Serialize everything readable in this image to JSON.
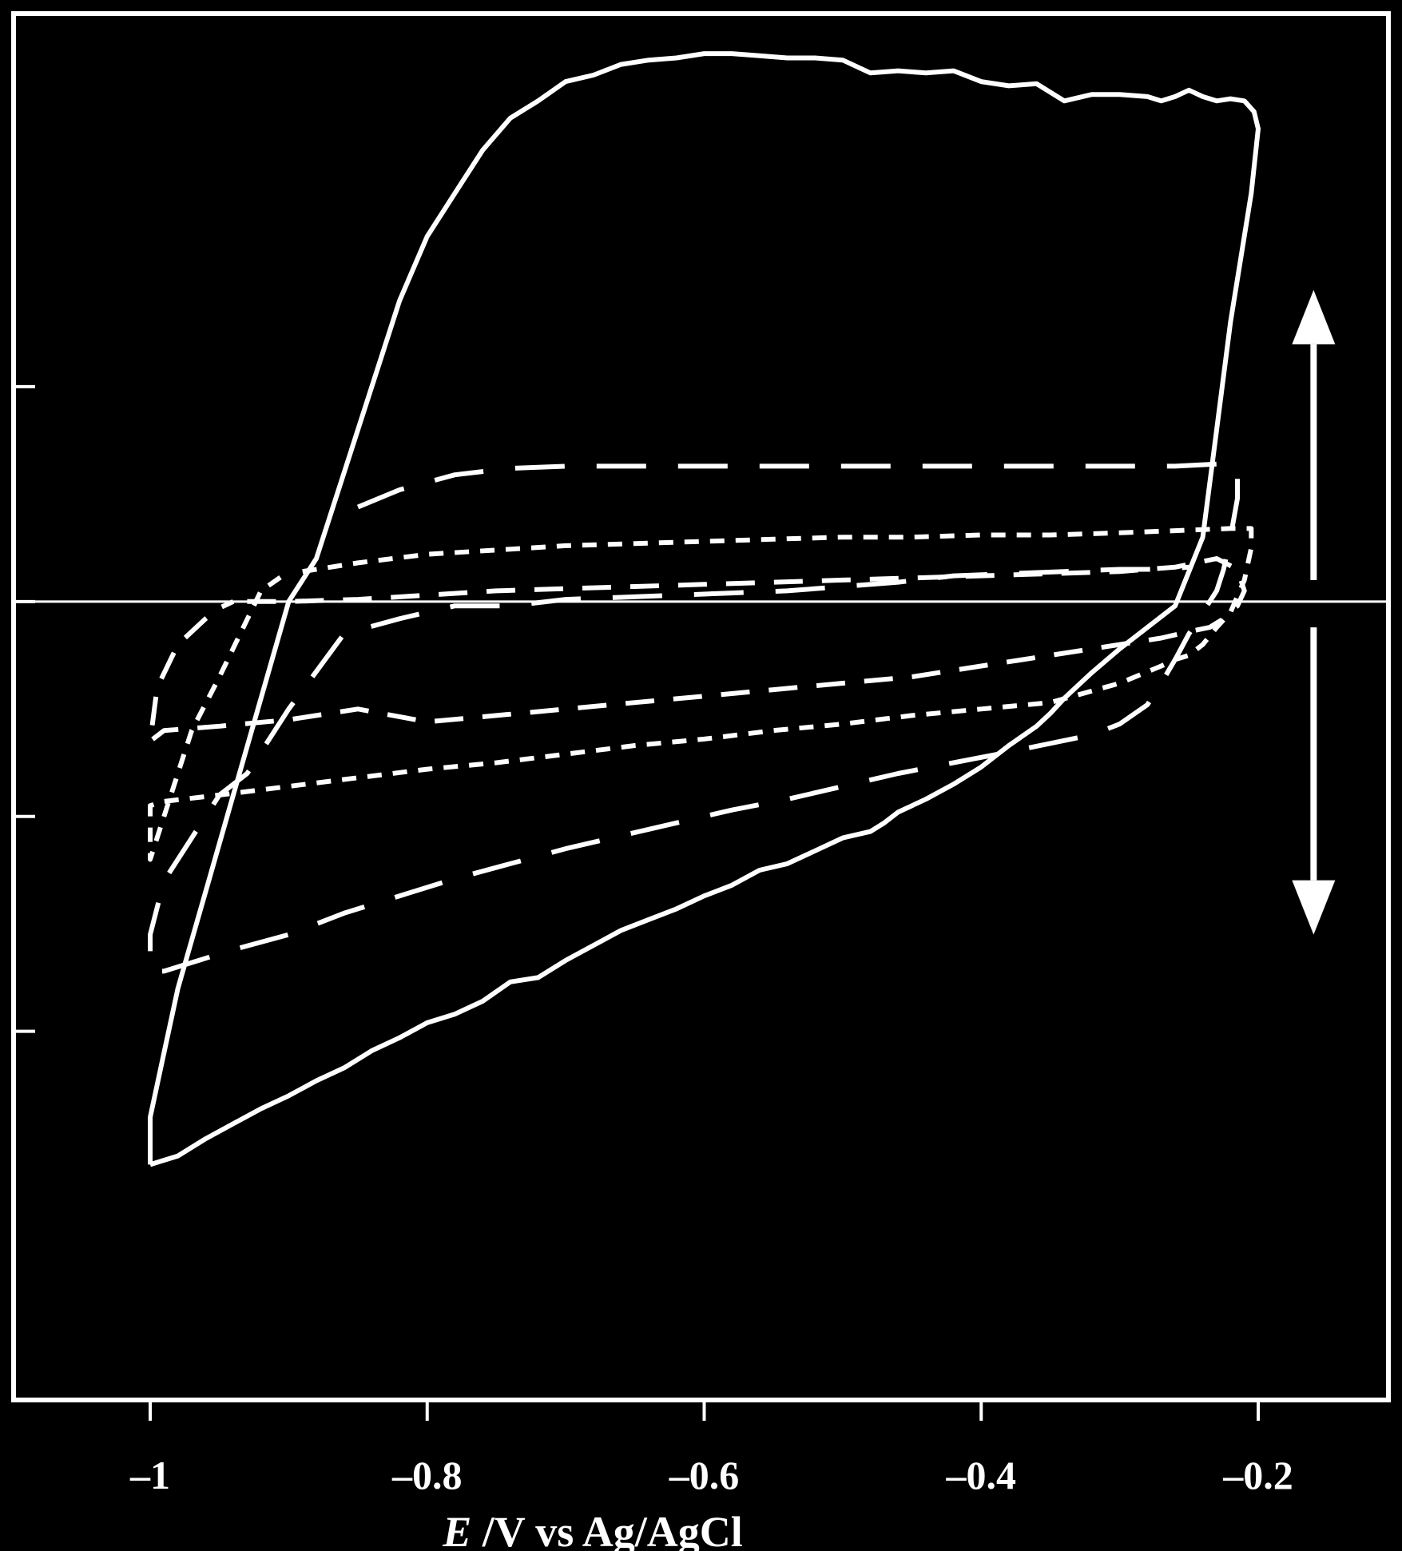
{
  "chart_data": {
    "type": "line",
    "title": "",
    "xlabel": "E /V vs Ag/AgCl",
    "xlabel_italic_part": "E",
    "xlabel_rest": " /V vs Ag/AgCl",
    "ylabel": "",
    "xlim": [
      -1.0,
      -0.2
    ],
    "ylim": [
      -2.6,
      2.45
    ],
    "x_ticks": [
      -1.0,
      -0.8,
      -0.6,
      -0.4,
      -0.2
    ],
    "x_tick_labels": [
      "-1",
      "-0.8",
      "-0.6",
      "-0.4",
      "-0.2"
    ],
    "y_ticks": [
      -2,
      -1,
      0,
      1
    ],
    "y_tick_labels": [
      "",
      "",
      "",
      ""
    ],
    "zero_line": true,
    "grid": false,
    "colors": {
      "background": "#000000",
      "foreground": "#ffffff"
    },
    "arrows": [
      {
        "direction": "up",
        "x": -0.16,
        "from": 0.1,
        "to": 1.45
      },
      {
        "direction": "down",
        "x": -0.16,
        "from": -0.12,
        "to": -1.55
      }
    ],
    "series": [
      {
        "style": "solid",
        "x": [
          -1.0,
          -0.99,
          -0.98,
          -0.96,
          -0.94,
          -0.92,
          -0.9,
          -0.88,
          -0.86,
          -0.84,
          -0.82,
          -0.8,
          -0.78,
          -0.76,
          -0.74,
          -0.72,
          -0.7,
          -0.68,
          -0.66,
          -0.64,
          -0.62,
          -0.6,
          -0.58,
          -0.56,
          -0.54,
          -0.52,
          -0.5,
          -0.48,
          -0.47,
          -0.46,
          -0.44,
          -0.42,
          -0.4,
          -0.38,
          -0.36,
          -0.35,
          -0.34,
          -0.32,
          -0.3,
          -0.28,
          -0.26,
          -0.24,
          -0.23,
          -0.22,
          -0.205,
          -0.2,
          -0.203,
          -0.21,
          -0.22,
          -0.23,
          -0.24,
          -0.25,
          -0.26,
          -0.27,
          -0.28,
          -0.3,
          -0.32,
          -0.34,
          -0.36,
          -0.38,
          -0.4,
          -0.42,
          -0.44,
          -0.46,
          -0.48,
          -0.5,
          -0.52,
          -0.54,
          -0.56,
          -0.58,
          -0.6,
          -0.62,
          -0.64,
          -0.66,
          -0.68,
          -0.7,
          -0.72,
          -0.74,
          -0.76,
          -0.78,
          -0.8,
          -0.82,
          -0.84,
          -0.86,
          -0.88,
          -0.9,
          -0.92,
          -0.94,
          -0.96,
          -0.98,
          -0.99,
          -1.0,
          -1.0
        ],
        "y": [
          -2.62,
          -2.6,
          -2.58,
          -2.5,
          -2.43,
          -2.36,
          -2.3,
          -2.23,
          -2.17,
          -2.09,
          -2.03,
          -1.96,
          -1.92,
          -1.86,
          -1.77,
          -1.75,
          -1.67,
          -1.6,
          -1.53,
          -1.48,
          -1.43,
          -1.37,
          -1.32,
          -1.25,
          -1.22,
          -1.16,
          -1.1,
          -1.07,
          -1.03,
          -0.98,
          -0.92,
          -0.85,
          -0.77,
          -0.67,
          -0.58,
          -0.52,
          -0.45,
          -0.33,
          -0.22,
          -0.12,
          -0.02,
          0.3,
          0.8,
          1.3,
          1.9,
          2.2,
          2.28,
          2.33,
          2.34,
          2.33,
          2.35,
          2.38,
          2.35,
          2.33,
          2.35,
          2.36,
          2.36,
          2.33,
          2.41,
          2.4,
          2.42,
          2.47,
          2.46,
          2.47,
          2.46,
          2.52,
          2.53,
          2.53,
          2.54,
          2.55,
          2.55,
          2.53,
          2.52,
          2.5,
          2.45,
          2.42,
          2.33,
          2.25,
          2.1,
          1.9,
          1.7,
          1.4,
          1.0,
          0.6,
          0.2,
          0.0,
          -0.45,
          -0.9,
          -1.35,
          -1.8,
          -2.1,
          -2.4,
          -2.62
        ]
      },
      {
        "style": "long-dash",
        "x": [
          -0.85,
          -0.82,
          -0.78,
          -0.74,
          -0.7,
          -0.66,
          -0.62,
          -0.58,
          -0.54,
          -0.5,
          -0.46,
          -0.42,
          -0.38,
          -0.34,
          -0.3,
          -0.26,
          -0.23,
          -0.215,
          -0.215,
          -0.22,
          -0.225,
          -0.23,
          -0.24,
          -0.25,
          -0.26,
          -0.27,
          -0.28,
          -0.3,
          -0.32,
          -0.35,
          -0.38,
          -0.42,
          -0.46,
          -0.5,
          -0.54,
          -0.58,
          -0.62,
          -0.66,
          -0.7,
          -0.74,
          -0.78,
          -0.82,
          -0.86,
          -0.9,
          -0.94,
          -0.97,
          -0.99,
          -1.0,
          -1.0,
          -0.99,
          -0.97,
          -0.95,
          -0.93,
          -0.9,
          -0.86,
          -0.82,
          -0.78,
          -0.74,
          -0.7,
          -0.66,
          -0.62,
          -0.58,
          -0.54,
          -0.5,
          -0.46,
          -0.42,
          -0.38,
          -0.34,
          -0.3,
          -0.27,
          -0.25
        ],
        "y": [
          0.44,
          0.52,
          0.59,
          0.62,
          0.63,
          0.63,
          0.63,
          0.63,
          0.63,
          0.63,
          0.63,
          0.63,
          0.63,
          0.63,
          0.63,
          0.63,
          0.64,
          0.62,
          0.48,
          0.3,
          0.15,
          0.05,
          -0.05,
          -0.15,
          -0.27,
          -0.38,
          -0.48,
          -0.57,
          -0.62,
          -0.66,
          -0.7,
          -0.75,
          -0.8,
          -0.86,
          -0.92,
          -0.97,
          -1.03,
          -1.09,
          -1.15,
          -1.22,
          -1.29,
          -1.37,
          -1.45,
          -1.55,
          -1.62,
          -1.68,
          -1.72,
          -1.72,
          -1.55,
          -1.3,
          -1.1,
          -0.9,
          -0.8,
          -0.5,
          -0.15,
          -0.08,
          -0.02,
          -0.02,
          0.01,
          0.02,
          0.03,
          0.04,
          0.05,
          0.07,
          0.09,
          0.12,
          0.13,
          0.14,
          0.15,
          0.15,
          0.16
        ]
      },
      {
        "style": "short-dash",
        "x": [
          -0.89,
          -0.85,
          -0.8,
          -0.75,
          -0.7,
          -0.65,
          -0.6,
          -0.55,
          -0.5,
          -0.45,
          -0.4,
          -0.35,
          -0.3,
          -0.26,
          -0.22,
          -0.205,
          -0.205,
          -0.21,
          -0.22,
          -0.23,
          -0.24,
          -0.25,
          -0.26,
          -0.27,
          -0.3,
          -0.35,
          -0.4,
          -0.45,
          -0.5,
          -0.55,
          -0.6,
          -0.65,
          -0.7,
          -0.75,
          -0.8,
          -0.85,
          -0.9,
          -0.95,
          -0.99,
          -1.0,
          -1.0,
          -0.99,
          -0.97,
          -0.95,
          -0.92,
          -0.9
        ],
        "y": [
          0.14,
          0.18,
          0.22,
          0.24,
          0.26,
          0.27,
          0.28,
          0.29,
          0.3,
          0.3,
          0.31,
          0.31,
          0.32,
          0.33,
          0.34,
          0.34,
          0.25,
          0.1,
          -0.05,
          -0.12,
          -0.2,
          -0.25,
          -0.27,
          -0.3,
          -0.38,
          -0.47,
          -0.5,
          -0.53,
          -0.57,
          -0.6,
          -0.64,
          -0.67,
          -0.71,
          -0.75,
          -0.78,
          -0.82,
          -0.86,
          -0.9,
          -0.93,
          -0.95,
          -1.2,
          -1.0,
          -0.6,
          -0.35,
          0.05,
          0.14
        ]
      },
      {
        "style": "medium-dash",
        "x": [
          -0.93,
          -0.9,
          -0.85,
          -0.8,
          -0.75,
          -0.7,
          -0.65,
          -0.6,
          -0.55,
          -0.5,
          -0.45,
          -0.4,
          -0.35,
          -0.3,
          -0.26,
          -0.23,
          -0.215,
          -0.21,
          -0.215,
          -0.225,
          -0.235,
          -0.25,
          -0.27,
          -0.3,
          -0.35,
          -0.4,
          -0.45,
          -0.5,
          -0.55,
          -0.6,
          -0.65,
          -0.7,
          -0.75,
          -0.8,
          -0.85,
          -0.9,
          -0.95,
          -0.99,
          -1.0,
          -0.995,
          -0.98,
          -0.96,
          -0.95,
          -0.94
        ],
        "y": [
          0.0,
          0.0,
          0.01,
          0.03,
          0.05,
          0.06,
          0.07,
          0.08,
          0.09,
          0.1,
          0.11,
          0.12,
          0.13,
          0.14,
          0.16,
          0.2,
          0.15,
          0.05,
          -0.02,
          -0.08,
          -0.12,
          -0.14,
          -0.17,
          -0.2,
          -0.25,
          -0.3,
          -0.35,
          -0.38,
          -0.41,
          -0.44,
          -0.47,
          -0.5,
          -0.53,
          -0.56,
          -0.5,
          -0.55,
          -0.58,
          -0.6,
          -0.65,
          -0.4,
          -0.2,
          -0.08,
          -0.03,
          0.0
        ]
      }
    ]
  }
}
